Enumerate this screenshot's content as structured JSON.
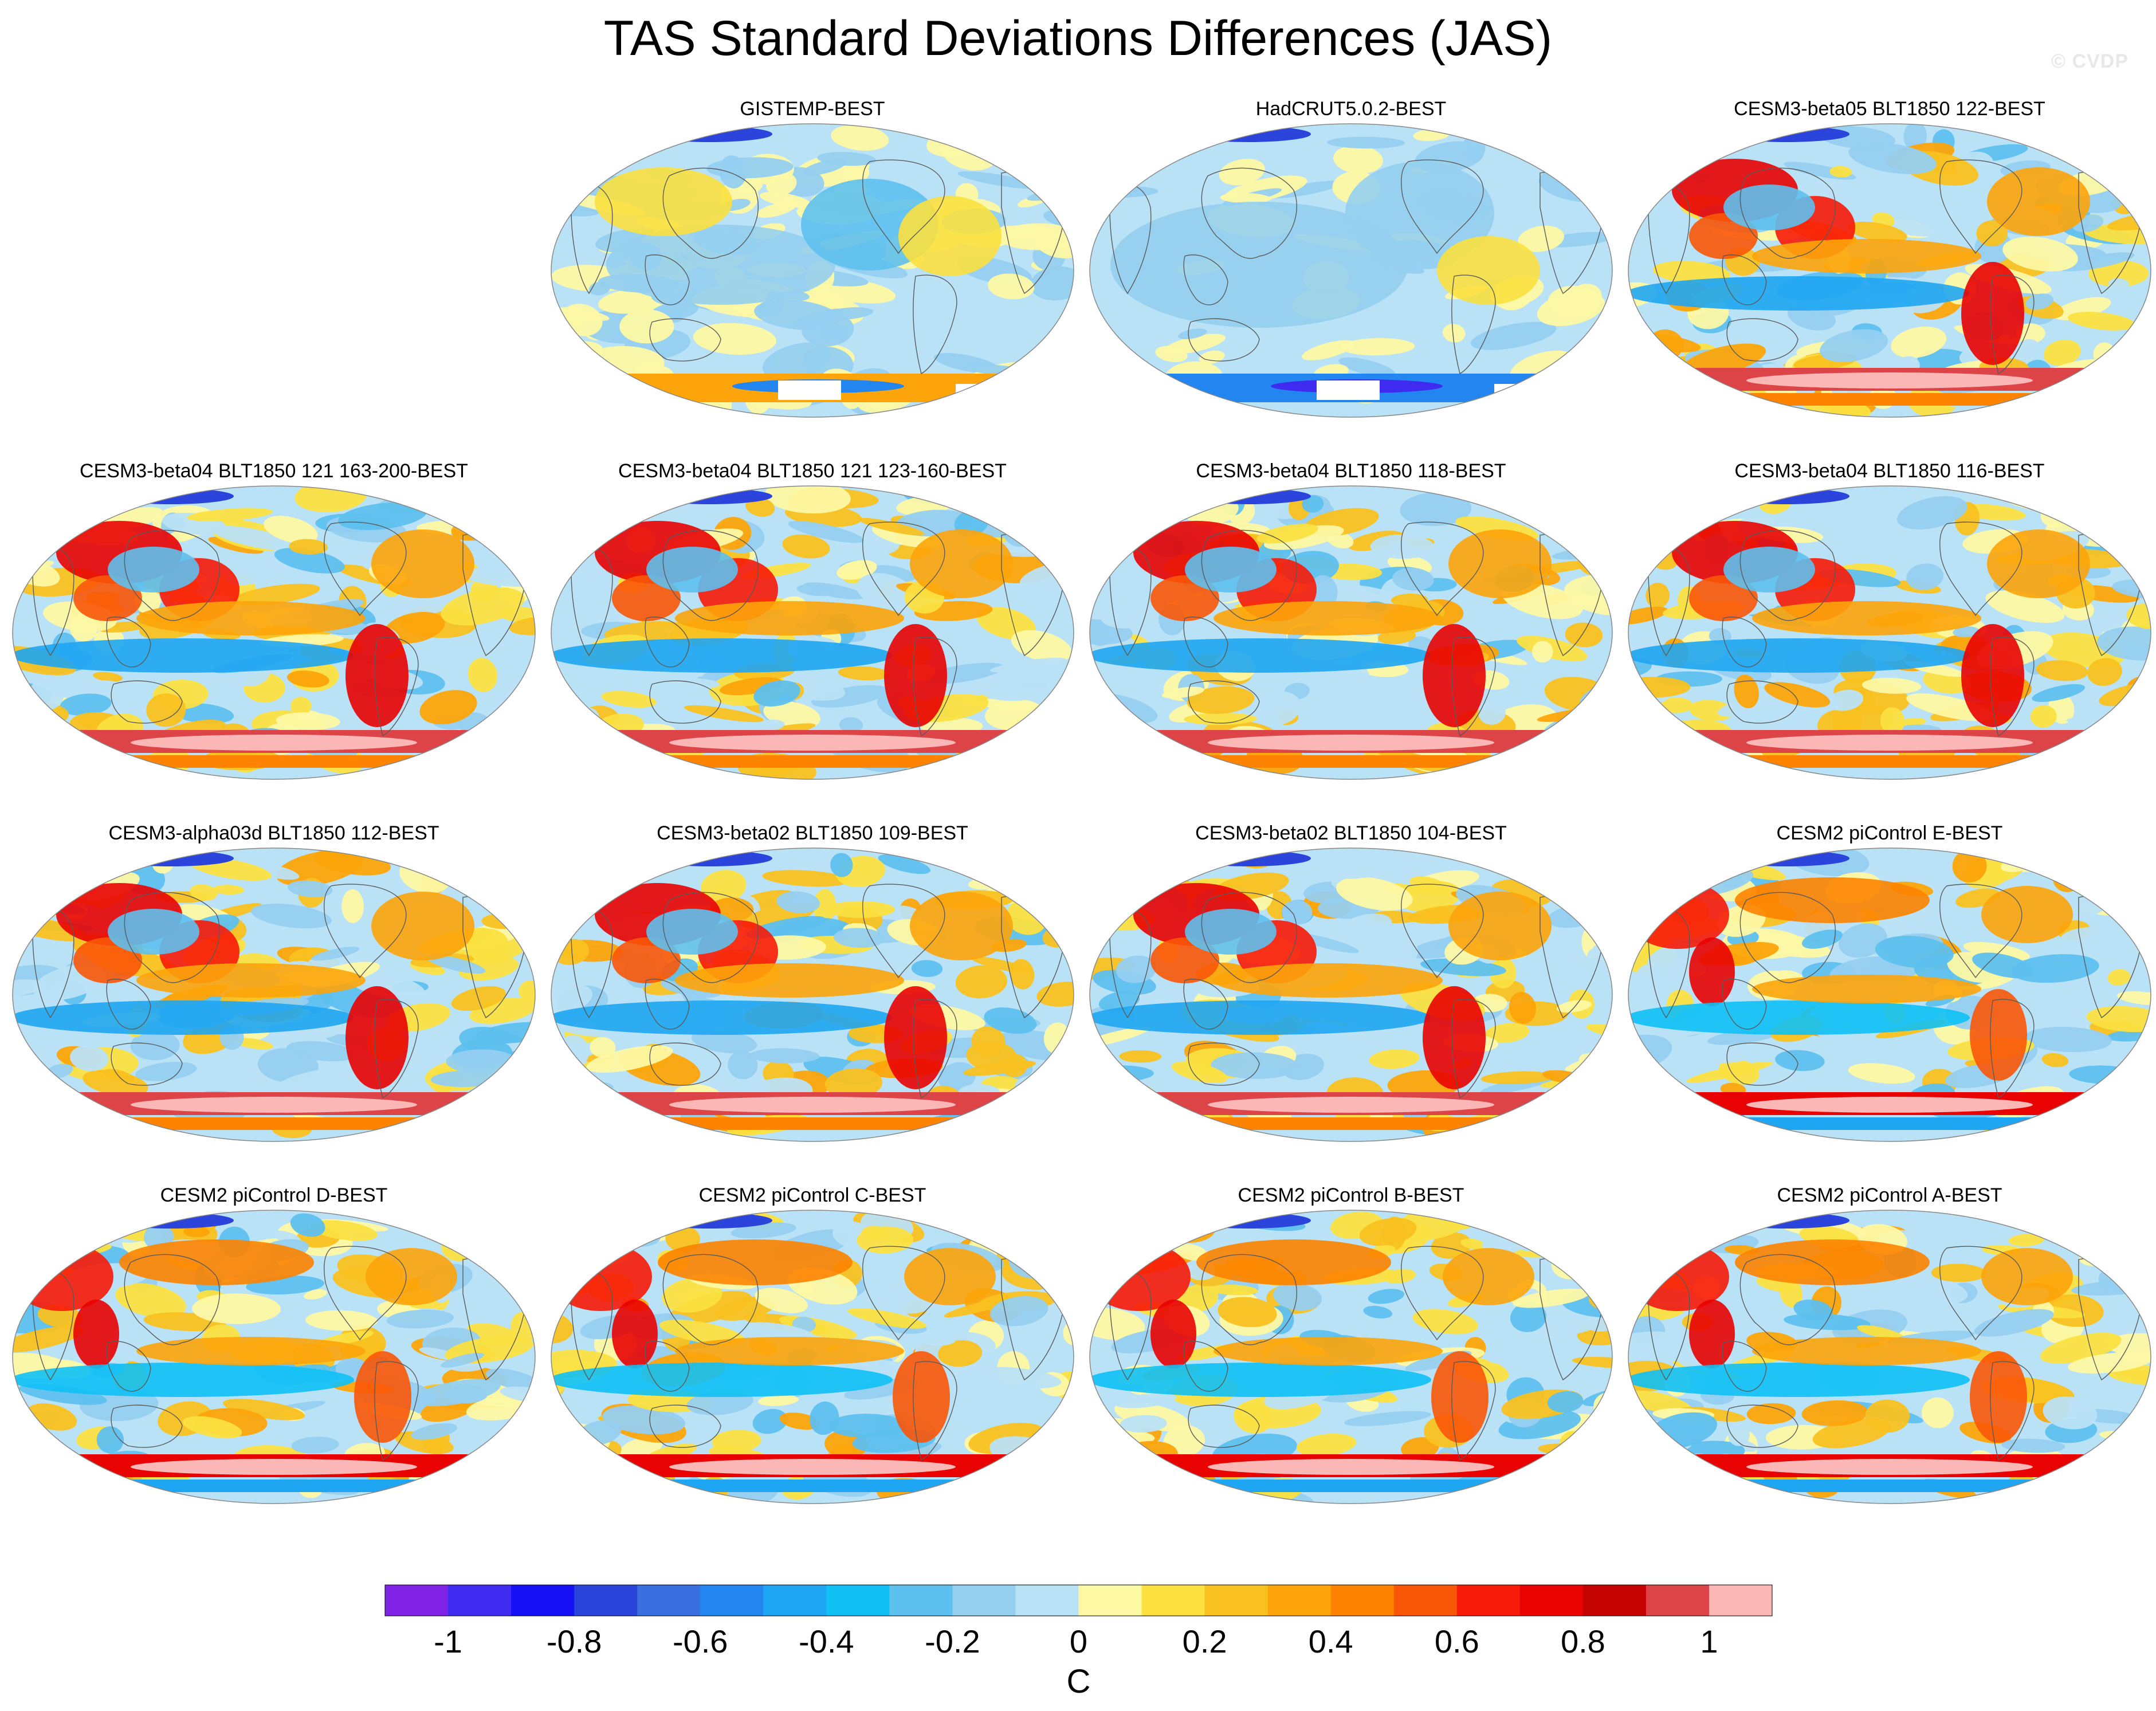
{
  "title": "TAS Standard Deviations Differences (JAS)",
  "watermark": "© CVDP",
  "chart_data": {
    "type": "heatmap",
    "title": "TAS Standard Deviations Differences (JAS)",
    "projection": "Robinson (Pacific-centred)",
    "layout": {
      "rows": 4,
      "cols": 4,
      "first_row_empty_cols": 1
    },
    "units": "C",
    "colorbar": {
      "levels": [
        -1.1,
        -1.0,
        -0.9,
        -0.8,
        -0.7,
        -0.6,
        -0.5,
        -0.4,
        -0.3,
        -0.2,
        -0.1,
        0,
        0.1,
        0.2,
        0.3,
        0.4,
        0.5,
        0.6,
        0.7,
        0.8,
        0.9,
        1.0,
        1.1
      ],
      "tick_labels": [
        "-1",
        "-0.8",
        "-0.6",
        "-0.4",
        "-0.2",
        "0",
        "0.2",
        "0.4",
        "0.6",
        "0.8",
        "1"
      ],
      "tick_values": [
        -1,
        -0.8,
        -0.6,
        -0.4,
        -0.2,
        0,
        0.2,
        0.4,
        0.6,
        0.8,
        1
      ],
      "colors": [
        "#7f22e6",
        "#3f2af0",
        "#1610f5",
        "#2a44dc",
        "#3a6fe0",
        "#2386f0",
        "#1fa6f2",
        "#10c0f5",
        "#5ec0ee",
        "#95cff0",
        "#bae2f6",
        "#fdf8a4",
        "#fbe040",
        "#f9c120",
        "#fca40a",
        "#fd8300",
        "#f95608",
        "#f71a08",
        "#e80202",
        "#c40202",
        "#dc4448",
        "#fbb6b6"
      ],
      "label": "C"
    },
    "panels": [
      {
        "title": "GISTEMP-BEST",
        "pattern": "obs"
      },
      {
        "title": "HadCRUT5.0.2-BEST",
        "pattern": "obs2"
      },
      {
        "title": "CESM3-beta05 BLT1850 122-BEST",
        "pattern": "model"
      },
      {
        "title": "CESM3-beta04 BLT1850 121 163-200-BEST",
        "pattern": "model"
      },
      {
        "title": "CESM3-beta04 BLT1850 121 123-160-BEST",
        "pattern": "model"
      },
      {
        "title": "CESM3-beta04 BLT1850 118-BEST",
        "pattern": "model"
      },
      {
        "title": "CESM3-beta04 BLT1850 116-BEST",
        "pattern": "model"
      },
      {
        "title": "CESM3-alpha03d BLT1850 112-BEST",
        "pattern": "model"
      },
      {
        "title": "CESM3-beta02 BLT1850 109-BEST",
        "pattern": "model"
      },
      {
        "title": "CESM3-beta02 BLT1850 104-BEST",
        "pattern": "model"
      },
      {
        "title": "CESM2 piControl E-BEST",
        "pattern": "cesm2"
      },
      {
        "title": "CESM2 piControl D-BEST",
        "pattern": "cesm2"
      },
      {
        "title": "CESM2 piControl C-BEST",
        "pattern": "cesm2"
      },
      {
        "title": "CESM2 piControl B-BEST",
        "pattern": "cesm2"
      },
      {
        "title": "CESM2 piControl A-BEST",
        "pattern": "cesm2"
      }
    ]
  }
}
